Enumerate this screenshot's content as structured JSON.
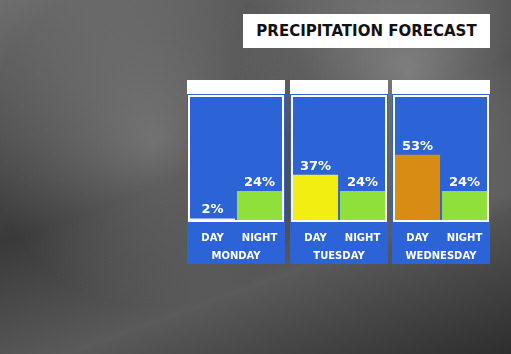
{
  "title": "PRECIPITATION FORECAST",
  "chart_data": [
    {
      "type": "bar",
      "xlabel": "MONDAY",
      "categories": [
        "DAY",
        "NIGHT"
      ],
      "values": [
        2,
        24
      ],
      "value_labels": [
        "2%",
        "24%"
      ],
      "colors": [
        "#f4f4f4",
        "#8fe03a"
      ],
      "ylim": [
        0,
        100
      ],
      "grid": false,
      "data_labels": true,
      "tick_labels": "x"
    },
    {
      "type": "bar",
      "xlabel": "TUESDAY",
      "categories": [
        "DAY",
        "NIGHT"
      ],
      "values": [
        37,
        24
      ],
      "value_labels": [
        "37%",
        "24%"
      ],
      "colors": [
        "#f2ee12",
        "#8fe03a"
      ],
      "ylim": [
        0,
        100
      ],
      "grid": false,
      "data_labels": true,
      "tick_labels": "x"
    },
    {
      "type": "bar",
      "xlabel": "WEDNESDAY",
      "categories": [
        "DAY",
        "NIGHT"
      ],
      "values": [
        53,
        24
      ],
      "value_labels": [
        "53%",
        "24%"
      ],
      "colors": [
        "#d98c14",
        "#8fe03a"
      ],
      "ylim": [
        0,
        100
      ],
      "grid": false,
      "data_labels": true,
      "tick_labels": "x"
    }
  ]
}
